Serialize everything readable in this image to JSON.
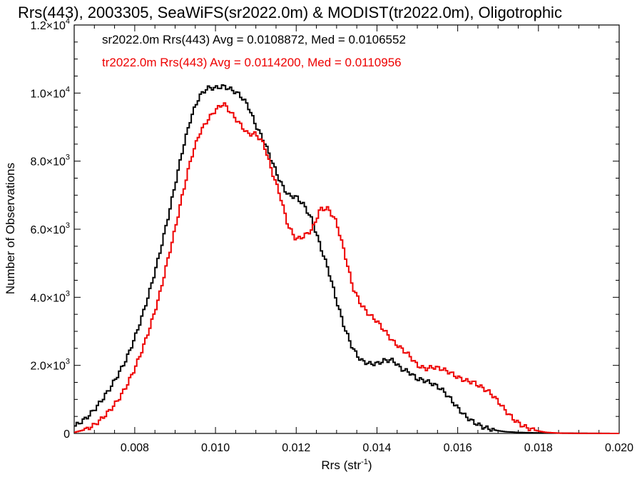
{
  "chart_data": {
    "type": "line",
    "title": "Rrs(443), 2003305, SeaWiFS(sr2022.0m) & MODIST(tr2022.0m), Oligotrophic",
    "xlabel": "Rrs (str",
    "xlabel_exp": "-1",
    "xlabel_close": ")",
    "ylabel": "Number of Observations",
    "xlim": [
      0.0065,
      0.02
    ],
    "ylim": [
      0,
      12000
    ],
    "grid": false,
    "legend_position": "top-left",
    "x_ticks": [
      {
        "value": 0.008,
        "label": "0.008"
      },
      {
        "value": 0.01,
        "label": "0.010"
      },
      {
        "value": 0.012,
        "label": "0.012"
      },
      {
        "value": 0.014,
        "label": "0.014"
      },
      {
        "value": 0.016,
        "label": "0.016"
      },
      {
        "value": 0.018,
        "label": "0.018"
      },
      {
        "value": 0.02,
        "label": "0.020"
      }
    ],
    "y_ticks": [
      {
        "value": 0,
        "label": "0",
        "exp": ""
      },
      {
        "value": 2000,
        "label": "2.0×10",
        "exp": "3"
      },
      {
        "value": 4000,
        "label": "4.0×10",
        "exp": "3"
      },
      {
        "value": 6000,
        "label": "6.0×10",
        "exp": "3"
      },
      {
        "value": 8000,
        "label": "8.0×10",
        "exp": "3"
      },
      {
        "value": 10000,
        "label": "1.0×10",
        "exp": "4"
      },
      {
        "value": 12000,
        "label": "1.2×10",
        "exp": "4"
      }
    ],
    "series": [
      {
        "label": "sr2022.0m Rrs(443) Avg = 0.0108872, Med = 0.0106552",
        "color": "#000000",
        "x": [
          0.0065,
          0.0068,
          0.007,
          0.0072,
          0.0074,
          0.0076,
          0.0078,
          0.008,
          0.0082,
          0.0084,
          0.0086,
          0.0088,
          0.009,
          0.0092,
          0.0094,
          0.0096,
          0.0098,
          0.01,
          0.0102,
          0.0104,
          0.0106,
          0.0108,
          0.011,
          0.0112,
          0.0114,
          0.0116,
          0.0118,
          0.012,
          0.0122,
          0.0124,
          0.0126,
          0.0128,
          0.013,
          0.0132,
          0.0134,
          0.0136,
          0.0138,
          0.014,
          0.0142,
          0.0144,
          0.0146,
          0.0148,
          0.015,
          0.0152,
          0.0154,
          0.0156,
          0.0158,
          0.016,
          0.0162,
          0.0164,
          0.0166,
          0.0168,
          0.017,
          0.0172,
          0.0175,
          0.018,
          0.019,
          0.02
        ],
        "y": [
          200,
          450,
          700,
          1000,
          1350,
          1750,
          2200,
          2800,
          3500,
          4300,
          5200,
          6200,
          7300,
          8400,
          9300,
          9900,
          10150,
          10150,
          10200,
          10100,
          9950,
          9650,
          9050,
          8600,
          8000,
          7400,
          7000,
          6950,
          6700,
          6250,
          5500,
          4800,
          3900,
          3100,
          2500,
          2150,
          2050,
          2050,
          2150,
          2150,
          1900,
          1800,
          1600,
          1550,
          1450,
          1300,
          1050,
          750,
          500,
          330,
          200,
          130,
          80,
          50,
          30,
          15,
          5,
          0
        ]
      },
      {
        "label": "tr2022.0m Rrs(443) Avg = 0.0114200, Med = 0.0110956",
        "color": "#ee0000",
        "x": [
          0.0065,
          0.0068,
          0.007,
          0.0072,
          0.0074,
          0.0076,
          0.0078,
          0.008,
          0.0082,
          0.0084,
          0.0086,
          0.0088,
          0.009,
          0.0092,
          0.0094,
          0.0096,
          0.0098,
          0.01,
          0.0102,
          0.0104,
          0.0106,
          0.0108,
          0.011,
          0.0112,
          0.0114,
          0.0116,
          0.0118,
          0.012,
          0.0122,
          0.0124,
          0.0126,
          0.0128,
          0.013,
          0.0132,
          0.0134,
          0.0136,
          0.0138,
          0.014,
          0.0142,
          0.0144,
          0.0146,
          0.0148,
          0.015,
          0.0152,
          0.0154,
          0.0156,
          0.0158,
          0.016,
          0.0162,
          0.0164,
          0.0166,
          0.0168,
          0.017,
          0.0172,
          0.0174,
          0.0176,
          0.0178,
          0.018,
          0.0182,
          0.0185,
          0.019,
          0.02
        ],
        "y": [
          30,
          120,
          250,
          450,
          700,
          1000,
          1400,
          1900,
          2500,
          3200,
          4000,
          5000,
          6000,
          7100,
          8100,
          8800,
          9200,
          9500,
          9700,
          9400,
          9100,
          8800,
          8800,
          8500,
          7700,
          7000,
          6100,
          5700,
          5800,
          6000,
          6600,
          6600,
          6200,
          5300,
          4300,
          3800,
          3500,
          3300,
          3000,
          2700,
          2500,
          2300,
          2000,
          1900,
          1950,
          1900,
          1800,
          1650,
          1550,
          1500,
          1350,
          1200,
          950,
          650,
          400,
          230,
          130,
          70,
          30,
          10,
          3,
          0
        ]
      }
    ]
  }
}
